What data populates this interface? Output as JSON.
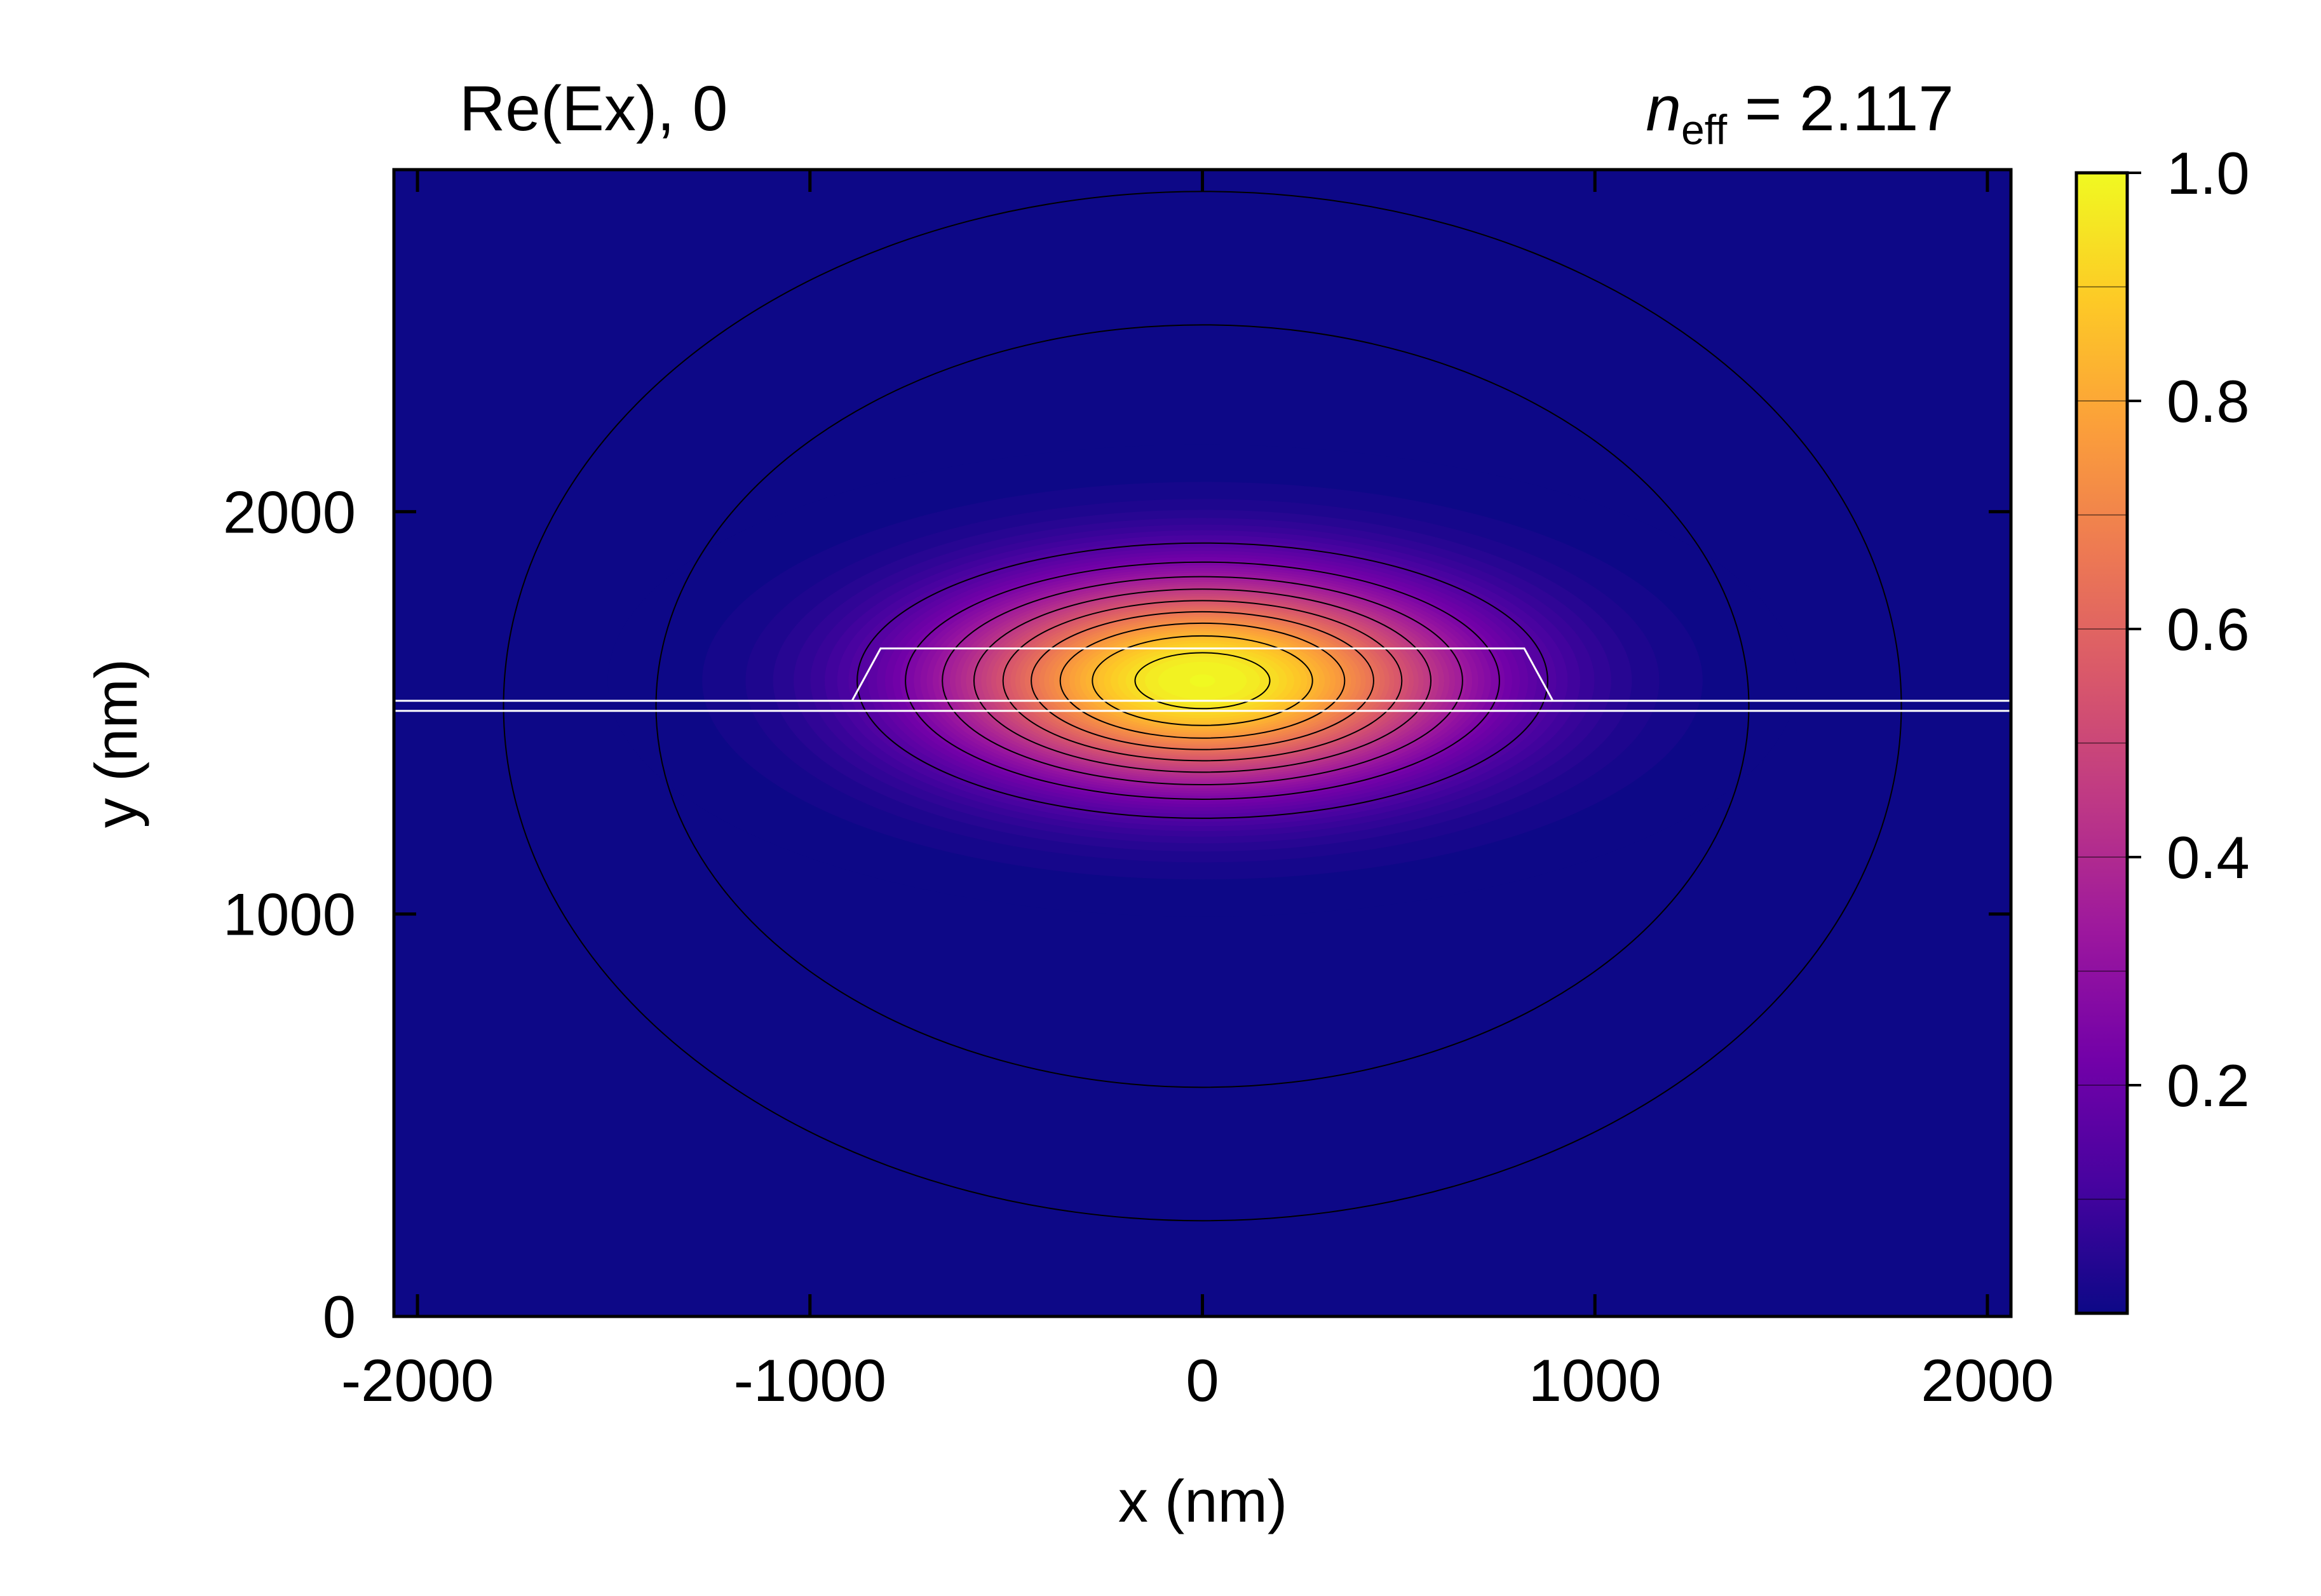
{
  "chart_data": {
    "type": "heatmap",
    "title_left": "Re(Ex), 0",
    "title_right": {
      "symbol": "n",
      "subscript": "eff",
      "text": " = 2.117"
    },
    "xlabel": "x (nm)",
    "ylabel": "y (nm)",
    "xlim": [
      -2060,
      2060
    ],
    "ylim": [
      0,
      2850
    ],
    "xticks": [
      -2000,
      -1000,
      0,
      1000,
      2000
    ],
    "xtick_labels": [
      "-2000",
      "-1000",
      "0",
      "1000",
      "2000"
    ],
    "yticks": [
      0,
      1000,
      2000
    ],
    "ytick_labels": [
      "0",
      "1000",
      "2000"
    ],
    "colormap": "plasma",
    "colorbar": {
      "range": [
        0,
        1.0
      ],
      "ticks": [
        0.2,
        0.4,
        0.6,
        0.8,
        1.0
      ],
      "tick_labels": [
        "0.2",
        "0.4",
        "0.6",
        "0.8",
        "1.0"
      ]
    },
    "field_peak": {
      "x": 0,
      "y": 1580,
      "value": 1.0
    },
    "contour_levels": [
      0.02,
      0.05,
      0.15,
      0.25,
      0.35,
      0.45,
      0.55,
      0.65,
      0.75,
      0.85,
      0.95
    ],
    "waveguide": {
      "slab_y": [
        1505,
        1530
      ],
      "ridge_x": [
        -820,
        820
      ],
      "ridge_y": [
        1530,
        1660
      ]
    },
    "grid": false,
    "tick_direction": "in"
  },
  "colors": {
    "background_field": "#0d0887",
    "contour": "#000000",
    "waveguide_outline": "#ffffff",
    "plasma_stops": [
      "#0d0887",
      "#46039f",
      "#7201a8",
      "#9c179e",
      "#bd3786",
      "#d8576b",
      "#ed7953",
      "#fb9f3a",
      "#fdca26",
      "#f0f921"
    ]
  }
}
